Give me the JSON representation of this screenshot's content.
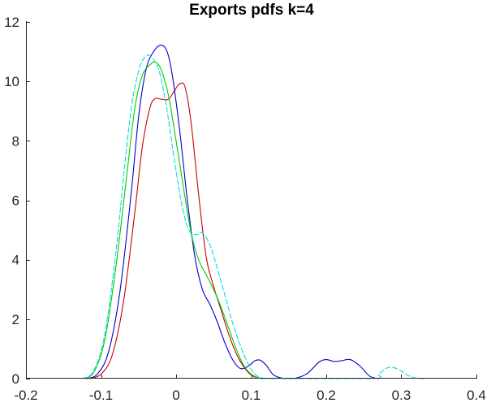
{
  "chart_data": {
    "type": "line",
    "title": "Exports pdfs k=4",
    "xlabel": "",
    "ylabel": "",
    "xlim": [
      -0.2,
      0.4
    ],
    "ylim": [
      0,
      12
    ],
    "x_ticks": [
      -0.2,
      -0.1,
      0,
      0.1,
      0.2,
      0.3,
      0.4
    ],
    "x_tick_labels": [
      "-0.2",
      "-0.1",
      "0",
      "0.1",
      "0.2",
      "0.3",
      "0.4"
    ],
    "y_ticks": [
      0,
      2,
      4,
      6,
      8,
      10,
      12
    ],
    "y_tick_labels": [
      "0",
      "2",
      "4",
      "6",
      "8",
      "10",
      "12"
    ],
    "grid": false,
    "legend": "none",
    "series": [
      {
        "color": "#cc0000",
        "style": "solid",
        "points": [
          [
            -0.115,
            0
          ],
          [
            -0.1,
            0.15
          ],
          [
            -0.085,
            0.8
          ],
          [
            -0.07,
            2.6
          ],
          [
            -0.055,
            5.6
          ],
          [
            -0.045,
            7.8
          ],
          [
            -0.035,
            9.1
          ],
          [
            -0.028,
            9.42
          ],
          [
            -0.02,
            9.4
          ],
          [
            -0.01,
            9.4
          ],
          [
            -0.002,
            9.7
          ],
          [
            0.005,
            9.92
          ],
          [
            0.012,
            9.8
          ],
          [
            0.02,
            8.6
          ],
          [
            0.03,
            6.2
          ],
          [
            0.04,
            4.1
          ],
          [
            0.05,
            3.1
          ],
          [
            0.06,
            2.3
          ],
          [
            0.07,
            1.5
          ],
          [
            0.08,
            0.85
          ],
          [
            0.09,
            0.4
          ],
          [
            0.1,
            0.12
          ],
          [
            0.11,
            0.02
          ],
          [
            0.12,
            0
          ]
        ]
      },
      {
        "color": "#0000cc",
        "style": "solid",
        "points": [
          [
            -0.12,
            0
          ],
          [
            -0.105,
            0.15
          ],
          [
            -0.09,
            0.9
          ],
          [
            -0.075,
            2.9
          ],
          [
            -0.06,
            6.2
          ],
          [
            -0.05,
            8.8
          ],
          [
            -0.04,
            10.4
          ],
          [
            -0.03,
            11.0
          ],
          [
            -0.02,
            11.22
          ],
          [
            -0.012,
            11.0
          ],
          [
            -0.005,
            10.2
          ],
          [
            0.005,
            8.3
          ],
          [
            0.015,
            6.0
          ],
          [
            0.025,
            4.1
          ],
          [
            0.035,
            3.0
          ],
          [
            0.045,
            2.5
          ],
          [
            0.055,
            1.9
          ],
          [
            0.065,
            1.2
          ],
          [
            0.075,
            0.65
          ],
          [
            0.085,
            0.35
          ],
          [
            0.095,
            0.4
          ],
          [
            0.105,
            0.6
          ],
          [
            0.112,
            0.62
          ],
          [
            0.12,
            0.45
          ],
          [
            0.13,
            0.12
          ],
          [
            0.145,
            0
          ],
          [
            0.16,
            0.02
          ],
          [
            0.175,
            0.18
          ],
          [
            0.19,
            0.55
          ],
          [
            0.2,
            0.64
          ],
          [
            0.21,
            0.58
          ],
          [
            0.22,
            0.6
          ],
          [
            0.232,
            0.64
          ],
          [
            0.245,
            0.42
          ],
          [
            0.258,
            0.08
          ],
          [
            0.27,
            0
          ]
        ]
      },
      {
        "color": "#00cc00",
        "style": "solid",
        "points": [
          [
            -0.125,
            0
          ],
          [
            -0.11,
            0.2
          ],
          [
            -0.095,
            1.3
          ],
          [
            -0.08,
            3.8
          ],
          [
            -0.065,
            7.0
          ],
          [
            -0.055,
            9.1
          ],
          [
            -0.045,
            10.2
          ],
          [
            -0.035,
            10.55
          ],
          [
            -0.028,
            10.65
          ],
          [
            -0.02,
            10.4
          ],
          [
            -0.01,
            9.5
          ],
          [
            0.0,
            8.0
          ],
          [
            0.01,
            6.4
          ],
          [
            0.02,
            4.9
          ],
          [
            0.03,
            4.0
          ],
          [
            0.04,
            3.5
          ],
          [
            0.05,
            3.0
          ],
          [
            0.06,
            2.4
          ],
          [
            0.07,
            1.7
          ],
          [
            0.08,
            1.0
          ],
          [
            0.09,
            0.45
          ],
          [
            0.1,
            0.15
          ],
          [
            0.11,
            0.02
          ],
          [
            0.115,
            0
          ]
        ]
      },
      {
        "color": "#00dddd",
        "style": "dashed",
        "points": [
          [
            -0.125,
            0
          ],
          [
            -0.11,
            0.25
          ],
          [
            -0.095,
            1.5
          ],
          [
            -0.08,
            4.3
          ],
          [
            -0.068,
            7.3
          ],
          [
            -0.058,
            9.4
          ],
          [
            -0.048,
            10.5
          ],
          [
            -0.04,
            10.85
          ],
          [
            -0.032,
            10.8
          ],
          [
            -0.022,
            10.3
          ],
          [
            -0.012,
            9.0
          ],
          [
            -0.002,
            7.3
          ],
          [
            0.008,
            5.8
          ],
          [
            0.018,
            4.95
          ],
          [
            0.028,
            4.85
          ],
          [
            0.035,
            4.9
          ],
          [
            0.045,
            4.5
          ],
          [
            0.055,
            3.7
          ],
          [
            0.065,
            2.8
          ],
          [
            0.075,
            1.9
          ],
          [
            0.085,
            1.15
          ],
          [
            0.095,
            0.55
          ],
          [
            0.105,
            0.15
          ],
          [
            0.115,
            0.02
          ],
          [
            0.125,
            0
          ],
          [
            0.26,
            0
          ],
          [
            0.27,
            0.15
          ],
          [
            0.28,
            0.35
          ],
          [
            0.288,
            0.38
          ],
          [
            0.297,
            0.3
          ],
          [
            0.308,
            0.12
          ],
          [
            0.32,
            0.02
          ],
          [
            0.33,
            0
          ]
        ]
      }
    ]
  }
}
